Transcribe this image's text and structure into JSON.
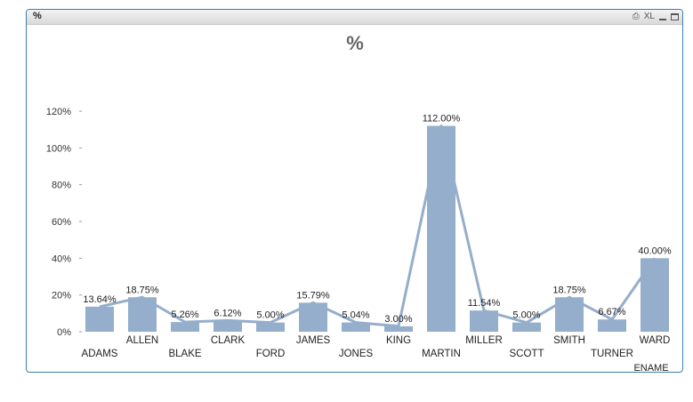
{
  "window": {
    "caption": "%",
    "icons": [
      {
        "name": "print-icon",
        "glyph": "⎙"
      },
      {
        "name": "xl-icon",
        "glyph": "XL"
      }
    ]
  },
  "chart_data": {
    "type": "bar",
    "title": "%",
    "xlabel": "ENAME",
    "ylabel": "",
    "categories": [
      "ADAMS",
      "ALLEN",
      "BLAKE",
      "CLARK",
      "FORD",
      "JAMES",
      "JONES",
      "KING",
      "MARTIN",
      "MILLER",
      "SCOTT",
      "SMITH",
      "TURNER",
      "WARD"
    ],
    "values": [
      13.64,
      18.75,
      5.26,
      6.12,
      5.0,
      15.79,
      5.04,
      3.0,
      112.0,
      11.54,
      5.0,
      18.75,
      6.67,
      40.0
    ],
    "data_labels": [
      "13.64%",
      "18.75%",
      "5.26%",
      "6.12%",
      "5.00%",
      "15.79%",
      "5.04%",
      "3.00%",
      "112.00%",
      "11.54%",
      "5.00%",
      "18.75%",
      "6.67%",
      "40.00%"
    ],
    "line_overlay": true,
    "ylim": [
      0,
      120
    ],
    "yticks": [
      0,
      20,
      40,
      60,
      80,
      100,
      120
    ],
    "ytick_labels": [
      "0%",
      "20%",
      "40%",
      "60%",
      "80%",
      "100%",
      "120%"
    ],
    "bar_color": "#95aecb",
    "line_color": "#95aecb"
  }
}
